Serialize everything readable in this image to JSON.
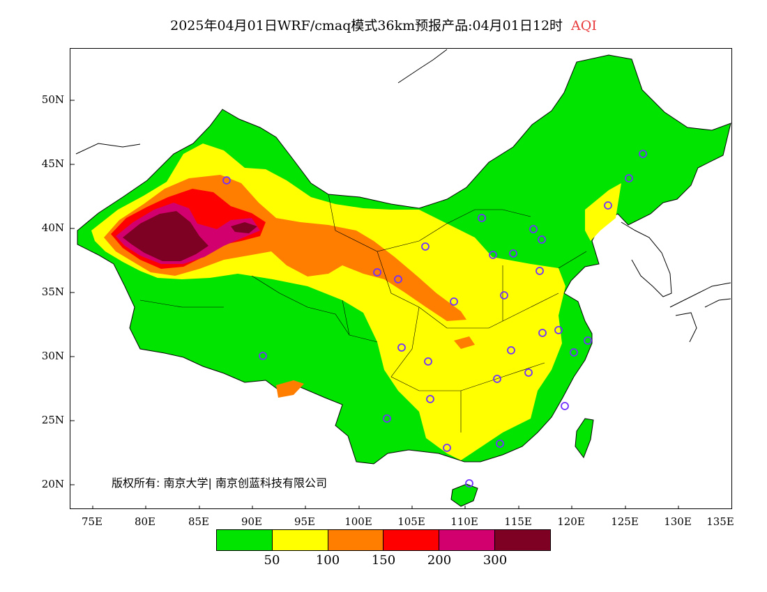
{
  "title": {
    "main": "2025年04月01日WRF/cmaq模式36km预报产品:04月01日12时",
    "variable": "AQI",
    "variable_color": "#e8393b"
  },
  "axes": {
    "latitude_ticks": [
      "50N",
      "45N",
      "40N",
      "35N",
      "30N",
      "25N",
      "20N"
    ],
    "longitude_ticks": [
      "75E",
      "80E",
      "85E",
      "90E",
      "95E",
      "100E",
      "105E",
      "110E",
      "115E",
      "120E",
      "125E",
      "130E",
      "135E"
    ]
  },
  "copyright": "版权所有: 南京大学| 南京创蓝科技有限公司",
  "legend": {
    "colors": [
      "#00e400",
      "#ffff00",
      "#ff7e00",
      "#ff0000",
      "#d2006e",
      "#7e0023"
    ],
    "labels": [
      "50",
      "100",
      "150",
      "200",
      "300"
    ]
  },
  "map": {
    "region": "China",
    "variable_shown": "AQI",
    "stations": "purple circles marking cities"
  }
}
